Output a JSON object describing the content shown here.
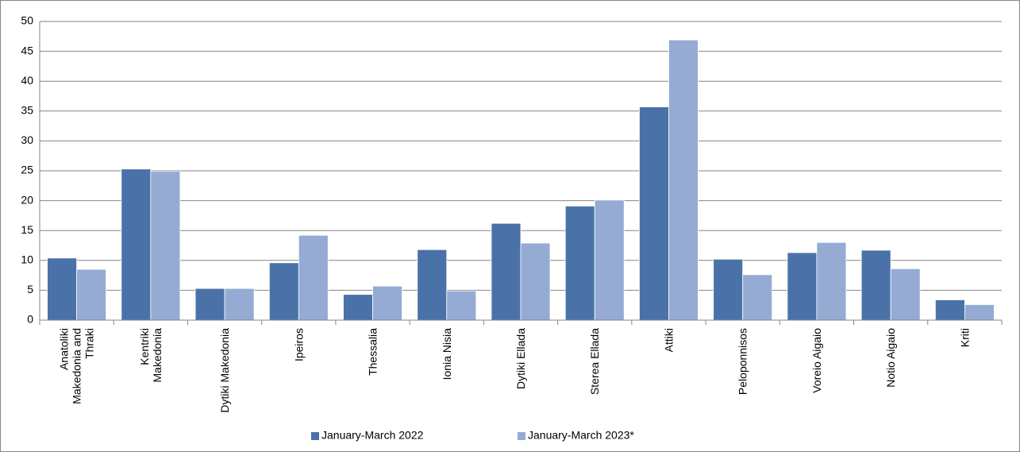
{
  "chart_data": {
    "type": "bar",
    "categories": [
      "Anatoliki\nMakedonia and\nThraki",
      "Kentriki\nMakedonia",
      "Dytiki Makedonia",
      "Ipeiros",
      "Thessalia",
      "Ionia Nisia",
      "Dytiki Ellada",
      "Sterea Ellada",
      "Attiki",
      "Peloponnisos",
      "Voreio Aigaio",
      "Notio Aigaio",
      "Kriti"
    ],
    "series": [
      {
        "name": "January-March 2022",
        "color": "#4a72a8",
        "values": [
          10.4,
          25.3,
          5.3,
          9.6,
          4.3,
          11.8,
          16.2,
          19.1,
          35.7,
          10.2,
          11.3,
          11.7,
          3.4
        ]
      },
      {
        "name": "January-March 2023*",
        "color": "#95abd4",
        "values": [
          8.5,
          24.9,
          5.3,
          14.2,
          5.7,
          4.9,
          12.9,
          20.1,
          46.9,
          7.6,
          13.0,
          8.6,
          2.6
        ]
      }
    ],
    "ylim": [
      0,
      50
    ],
    "yticks": [
      0,
      5,
      10,
      15,
      20,
      25,
      30,
      35,
      40,
      45,
      50
    ],
    "grid": true,
    "legend": "bottom"
  }
}
